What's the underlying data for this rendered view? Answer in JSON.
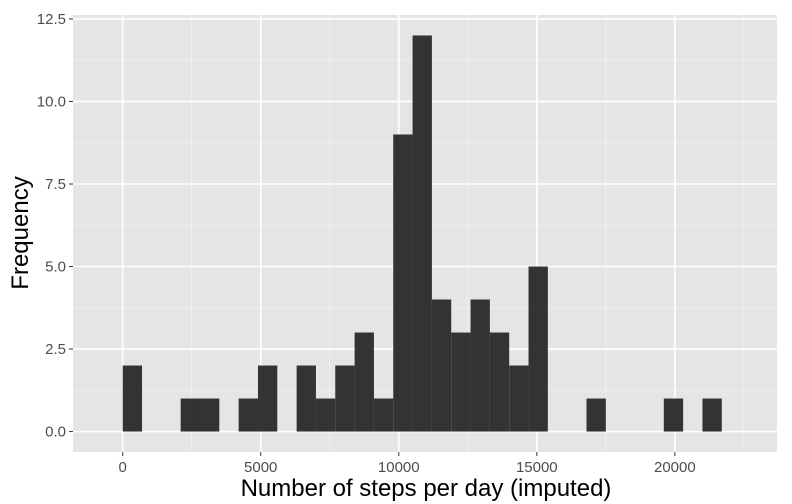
{
  "chart_data": {
    "type": "bar",
    "xlabel": "Number of steps per day (imputed)",
    "ylabel": "Frequency",
    "xlim": [
      -1800,
      23700
    ],
    "ylim": [
      -0.62,
      12.62
    ],
    "xticks": [
      0,
      5000,
      10000,
      15000,
      20000
    ],
    "xtick_labels": [
      "0",
      "5000",
      "10000",
      "15000",
      "20000"
    ],
    "yticks": [
      0,
      2.5,
      5,
      7.5,
      10,
      12.5
    ],
    "ytick_labels": [
      "0.0",
      "2.5",
      "5.0",
      "7.5",
      "10.0",
      "12.5"
    ],
    "bin_width": 700,
    "bins": [
      {
        "start": 0,
        "end": 700,
        "count": 2
      },
      {
        "start": 2100,
        "end": 2800,
        "count": 1
      },
      {
        "start": 2800,
        "end": 3500,
        "count": 1
      },
      {
        "start": 4200,
        "end": 4900,
        "count": 1
      },
      {
        "start": 4900,
        "end": 5600,
        "count": 2
      },
      {
        "start": 6300,
        "end": 7000,
        "count": 2
      },
      {
        "start": 7000,
        "end": 7700,
        "count": 1
      },
      {
        "start": 7700,
        "end": 8400,
        "count": 2
      },
      {
        "start": 8400,
        "end": 9100,
        "count": 3
      },
      {
        "start": 9100,
        "end": 9800,
        "count": 1
      },
      {
        "start": 9800,
        "end": 10500,
        "count": 9
      },
      {
        "start": 10500,
        "end": 11200,
        "count": 12
      },
      {
        "start": 11200,
        "end": 11900,
        "count": 4
      },
      {
        "start": 11900,
        "end": 12600,
        "count": 3
      },
      {
        "start": 12600,
        "end": 13300,
        "count": 4
      },
      {
        "start": 13300,
        "end": 14000,
        "count": 3
      },
      {
        "start": 14000,
        "end": 14700,
        "count": 2
      },
      {
        "start": 14700,
        "end": 15400,
        "count": 5
      },
      {
        "start": 16800,
        "end": 17500,
        "count": 1
      },
      {
        "start": 19600,
        "end": 20300,
        "count": 1
      },
      {
        "start": 21000,
        "end": 21700,
        "count": 1
      }
    ],
    "grid": true,
    "colors": {
      "panel_background": "#e5e5e5",
      "grid_major": "#ffffff",
      "grid_minor": "#f2f2f2",
      "bar_fill": "#333333",
      "tick_text": "#4d4d4d",
      "tick_mark": "#333333",
      "axis_title": "#000000"
    }
  }
}
